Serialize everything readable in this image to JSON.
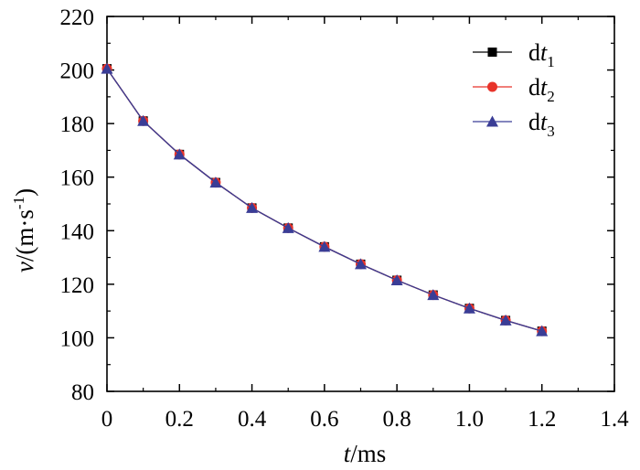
{
  "chart_data": {
    "type": "line",
    "xlabel": {
      "var": "t",
      "unit": "/ms"
    },
    "ylabel": {
      "var": "v",
      "unit": "/(m·s",
      "sup": "-1",
      "close": ")"
    },
    "xlim": [
      0,
      1.4
    ],
    "ylim": [
      80,
      220
    ],
    "x_ticks": [
      0,
      0.2,
      0.4,
      0.6,
      0.8,
      1.0,
      1.2,
      1.4
    ],
    "x_tick_labels": [
      "0",
      "0.2",
      "0.4",
      "0.6",
      "0.8",
      "1.0",
      "1.2",
      "1.4"
    ],
    "y_ticks": [
      80,
      100,
      120,
      140,
      160,
      180,
      200,
      220
    ],
    "y_tick_labels": [
      "80",
      "100",
      "120",
      "140",
      "160",
      "180",
      "200",
      "220"
    ],
    "grid": false,
    "legend_position": "top-right",
    "x": [
      0,
      0.1,
      0.2,
      0.3,
      0.4,
      0.5,
      0.6,
      0.7,
      0.8,
      0.9,
      1.0,
      1.1,
      1.2
    ],
    "series": [
      {
        "name": "dt",
        "sub": "1",
        "marker": "square",
        "color": "#000000",
        "values": [
          200.5,
          181.0,
          168.5,
          158.0,
          148.5,
          141.0,
          134.0,
          127.5,
          121.5,
          116.0,
          111.0,
          106.5,
          102.5
        ]
      },
      {
        "name": "dt",
        "sub": "2",
        "marker": "circle",
        "color": "#e8332a",
        "values": [
          200.5,
          181.0,
          168.5,
          158.0,
          148.5,
          141.0,
          134.0,
          127.5,
          121.5,
          116.0,
          111.0,
          106.5,
          102.5
        ]
      },
      {
        "name": "dt",
        "sub": "3",
        "marker": "triangle",
        "color": "#3a3d96",
        "values": [
          200.5,
          181.0,
          168.5,
          158.0,
          148.5,
          141.0,
          134.0,
          127.5,
          121.5,
          116.0,
          111.0,
          106.5,
          102.5
        ]
      }
    ]
  }
}
